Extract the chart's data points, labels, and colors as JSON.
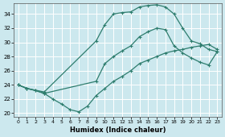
{
  "xlabel": "Humidex (Indice chaleur)",
  "bg_color": "#cce8ee",
  "line_color": "#2e7d6e",
  "grid_color": "#ffffff",
  "xlim": [
    -0.5,
    23.5
  ],
  "ylim": [
    19.5,
    35.5
  ],
  "xticks": [
    0,
    1,
    2,
    3,
    4,
    5,
    6,
    7,
    8,
    9,
    10,
    11,
    12,
    13,
    14,
    15,
    16,
    17,
    18,
    19,
    20,
    21,
    22,
    23
  ],
  "yticks": [
    20,
    22,
    24,
    26,
    28,
    30,
    32,
    34
  ],
  "line_top": {
    "x": [
      0,
      1,
      3,
      9,
      10,
      11,
      12,
      13,
      14,
      15,
      16,
      17,
      18,
      19,
      20,
      21,
      22,
      23
    ],
    "y": [
      24.0,
      23.5,
      23.0,
      30.2,
      32.5,
      34.0,
      34.2,
      34.3,
      35.0,
      35.2,
      35.3,
      35.0,
      34.0,
      32.0,
      30.2,
      29.8,
      29.0,
      28.7
    ]
  },
  "line_mid": {
    "x": [
      0,
      1,
      2,
      3,
      9,
      10,
      11,
      12,
      13,
      14,
      15,
      16,
      17,
      18,
      19,
      20,
      21,
      22,
      23
    ],
    "y": [
      24.0,
      23.5,
      23.2,
      22.8,
      24.5,
      27.0,
      28.0,
      28.8,
      29.5,
      30.8,
      31.5,
      32.0,
      31.8,
      29.5,
      28.5,
      27.8,
      27.2,
      26.8,
      28.7
    ]
  },
  "line_bot": {
    "x": [
      0,
      1,
      2,
      3,
      4,
      5,
      6,
      7,
      8,
      9,
      10,
      11,
      12,
      13,
      14,
      15,
      16,
      17,
      18,
      19,
      20,
      21,
      22,
      23
    ],
    "y": [
      24.0,
      23.5,
      23.2,
      22.8,
      22.0,
      21.3,
      20.5,
      20.2,
      21.0,
      22.5,
      23.5,
      24.5,
      25.2,
      26.0,
      27.0,
      27.5,
      28.0,
      28.5,
      28.8,
      29.0,
      29.3,
      29.5,
      29.7,
      29.0
    ]
  },
  "marker": "+",
  "marker_size": 3,
  "linewidth": 0.9
}
